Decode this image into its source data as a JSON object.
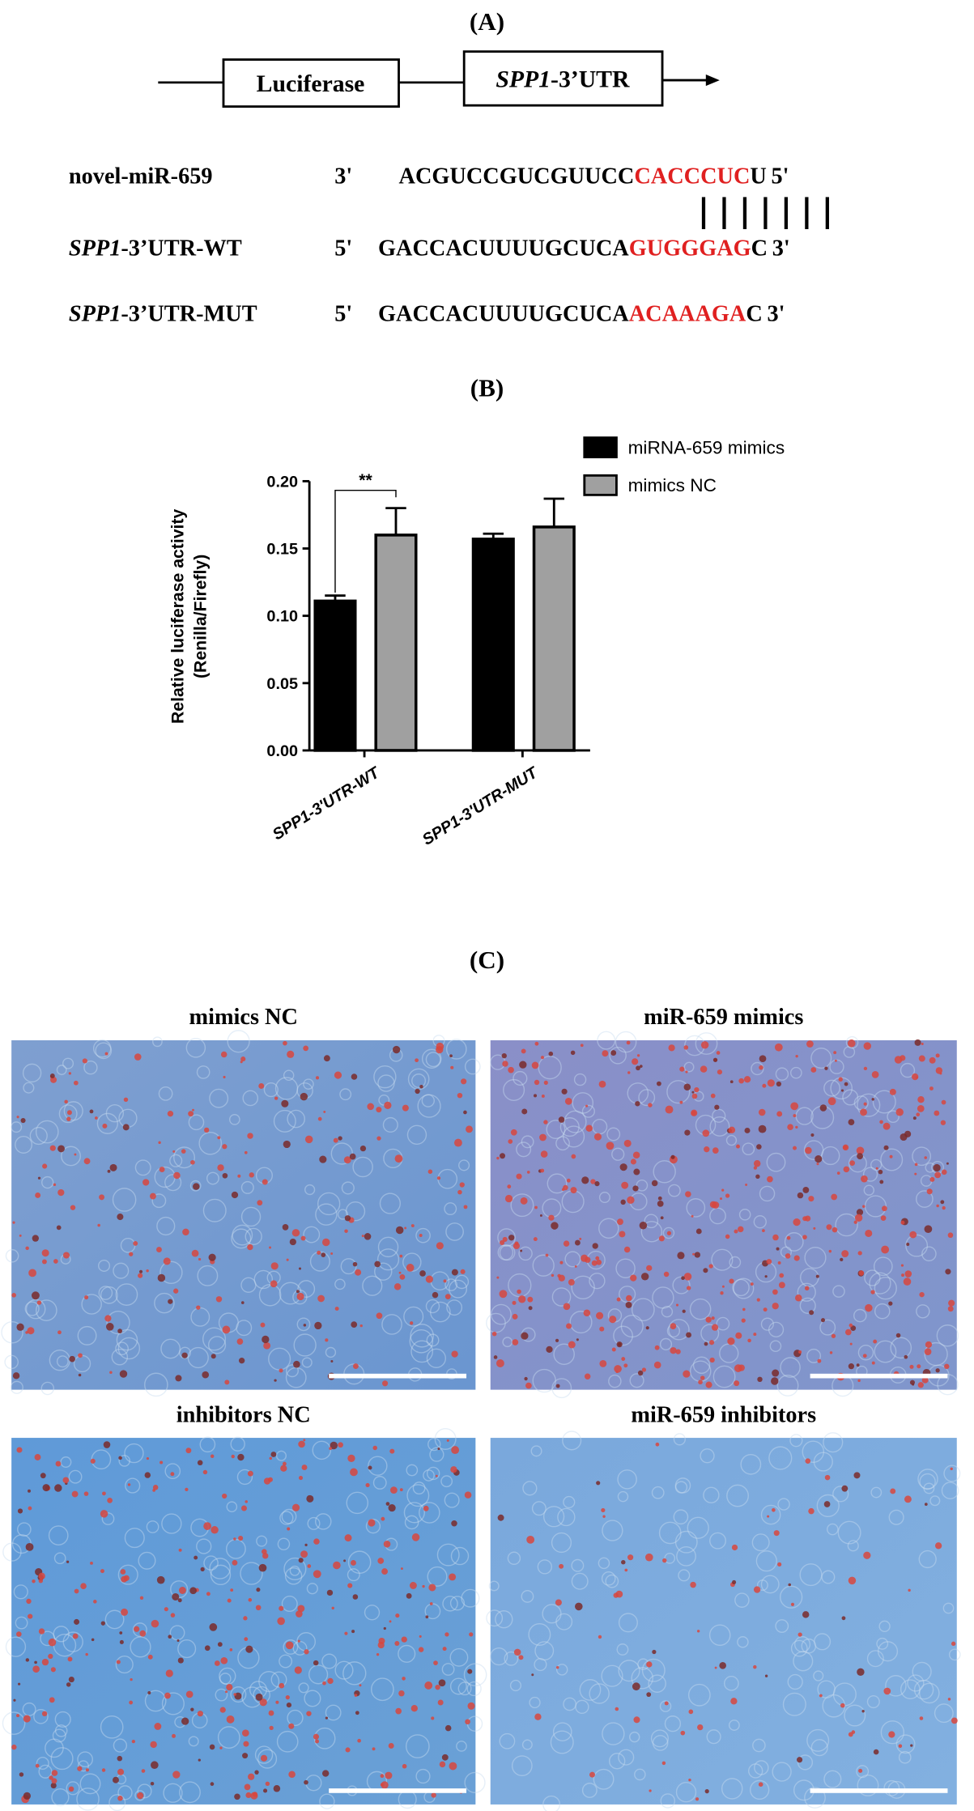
{
  "panel_a": {
    "label": "(A)",
    "construct": {
      "reporter": "Luciferase",
      "utr_gene": "SPP1",
      "utr_suffix": "-3’UTR"
    },
    "rows": [
      {
        "name": "novel-miR-659",
        "name_gene": "",
        "start": "3'",
        "seq": [
          "ACGUCCGUCGUUCC",
          "CACCCUC",
          "U"
        ],
        "end": "5'"
      },
      {
        "name": "-3’UTR-WT",
        "name_gene": "SPP1",
        "start": "5'",
        "seq": [
          "GACCACUUUUGCUCA",
          "GUGGGAG",
          "C"
        ],
        "end": "3'"
      },
      {
        "name": "-3’UTR-MUT",
        "name_gene": "SPP1",
        "start": "5'",
        "seq": [
          "GACCACUUUUGCUCA",
          "ACAAAGA",
          "C"
        ],
        "end": "3'"
      }
    ]
  },
  "chart_data": {
    "type": "bar",
    "label": "(B)",
    "y_label": [
      "Relative luciferase activity",
      "(Renilla/Firefly)"
    ],
    "categories": [
      "SPP1-3'UTR-WT",
      "SPP1-3'UTR-MUT"
    ],
    "series": [
      {
        "name": "miRNA-659 mimics",
        "color": "#000000",
        "values": [
          0.111,
          0.157
        ],
        "errors": [
          0.004,
          0.004
        ]
      },
      {
        "name": "mimics NC",
        "color": "#a0a0a0",
        "values": [
          0.16,
          0.166
        ],
        "errors": [
          0.02,
          0.021
        ]
      }
    ],
    "ylim": [
      0,
      0.2
    ],
    "yticks": [
      {
        "value": 0,
        "label": "0.00"
      },
      {
        "value": 0.05,
        "label": "0.05"
      },
      {
        "value": 0.1,
        "label": "0.10"
      },
      {
        "value": 0.15,
        "label": "0.15"
      },
      {
        "value": 0.2,
        "label": "0.20"
      }
    ],
    "annotation": "**",
    "legend": "top-right"
  },
  "panel_c": {
    "label": "(C)",
    "images": [
      {
        "title": "mimics NC"
      },
      {
        "title": "miR-659 mimics"
      },
      {
        "title": "inhibitors NC"
      },
      {
        "title": "miR-659 inhibitors"
      }
    ]
  }
}
